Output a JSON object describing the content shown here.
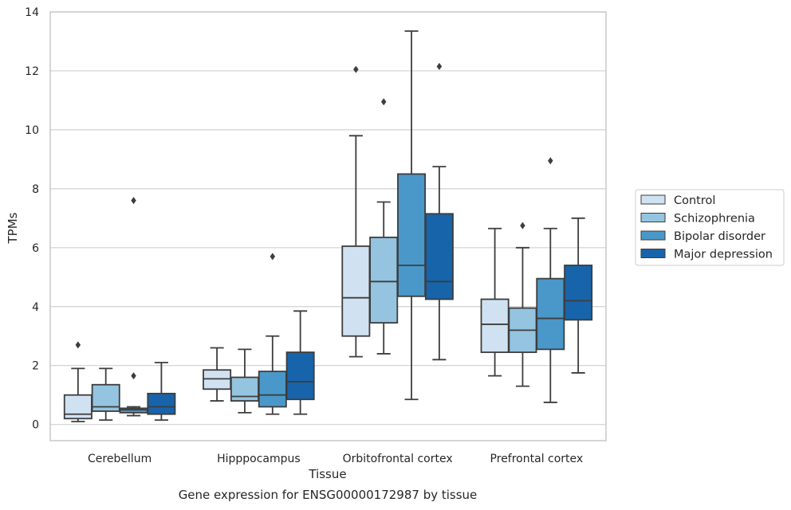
{
  "chart_data": {
    "type": "box",
    "title": "Gene expression for ENSG00000172987 by tissue",
    "xlabel": "Tissue",
    "ylabel": "TPMs",
    "ylim": [
      -0.55,
      14
    ],
    "yticks": [
      0,
      2,
      4,
      6,
      8,
      10,
      12,
      14
    ],
    "grid": "horizontal",
    "legend_position": "right",
    "categories": [
      "Cerebellum",
      "Hipppocampus",
      "Orbitofrontal cortex",
      "Prefrontal cortex"
    ],
    "series": [
      {
        "name": "Control",
        "color": "#d0e1f2",
        "boxes": [
          {
            "whisker_low": 0.1,
            "q1": 0.2,
            "median": 0.35,
            "q3": 1.0,
            "whisker_high": 1.9,
            "outliers": [
              2.7
            ]
          },
          {
            "whisker_low": 0.8,
            "q1": 1.2,
            "median": 1.55,
            "q3": 1.85,
            "whisker_high": 2.6,
            "outliers": []
          },
          {
            "whisker_low": 2.3,
            "q1": 3.0,
            "median": 4.3,
            "q3": 6.05,
            "whisker_high": 9.8,
            "outliers": [
              12.05
            ]
          },
          {
            "whisker_low": 1.65,
            "q1": 2.45,
            "median": 3.4,
            "q3": 4.25,
            "whisker_high": 6.65,
            "outliers": []
          }
        ]
      },
      {
        "name": "Schizophrenia",
        "color": "#94c4df",
        "boxes": [
          {
            "whisker_low": 0.15,
            "q1": 0.45,
            "median": 0.6,
            "q3": 1.35,
            "whisker_high": 1.9,
            "outliers": []
          },
          {
            "whisker_low": 0.4,
            "q1": 0.8,
            "median": 0.95,
            "q3": 1.6,
            "whisker_high": 2.55,
            "outliers": []
          },
          {
            "whisker_low": 2.4,
            "q1": 3.45,
            "median": 4.85,
            "q3": 6.35,
            "whisker_high": 7.55,
            "outliers": [
              10.95
            ]
          },
          {
            "whisker_low": 1.3,
            "q1": 2.45,
            "median": 3.2,
            "q3": 3.95,
            "whisker_high": 6.0,
            "outliers": [
              6.75
            ]
          }
        ]
      },
      {
        "name": "Bipolar disorder",
        "color": "#4a98c9",
        "boxes": [
          {
            "whisker_low": 0.3,
            "q1": 0.4,
            "median": 0.5,
            "q3": 0.55,
            "whisker_high": 0.6,
            "outliers": [
              1.65,
              7.6
            ]
          },
          {
            "whisker_low": 0.35,
            "q1": 0.6,
            "median": 1.0,
            "q3": 1.8,
            "whisker_high": 3.0,
            "outliers": [
              5.7
            ]
          },
          {
            "whisker_low": 0.85,
            "q1": 4.35,
            "median": 5.4,
            "q3": 8.5,
            "whisker_high": 13.35,
            "outliers": []
          },
          {
            "whisker_low": 0.75,
            "q1": 2.55,
            "median": 3.6,
            "q3": 4.95,
            "whisker_high": 6.65,
            "outliers": [
              8.95
            ]
          }
        ]
      },
      {
        "name": "Major depression",
        "color": "#1764ab",
        "boxes": [
          {
            "whisker_low": 0.15,
            "q1": 0.35,
            "median": 0.6,
            "q3": 1.05,
            "whisker_high": 2.1,
            "outliers": []
          },
          {
            "whisker_low": 0.35,
            "q1": 0.85,
            "median": 1.45,
            "q3": 2.45,
            "whisker_high": 3.85,
            "outliers": []
          },
          {
            "whisker_low": 2.2,
            "q1": 4.25,
            "median": 4.85,
            "q3": 7.15,
            "whisker_high": 8.75,
            "outliers": [
              12.15
            ]
          },
          {
            "whisker_low": 1.75,
            "q1": 3.55,
            "median": 4.2,
            "q3": 5.4,
            "whisker_high": 7.0,
            "outliers": []
          }
        ]
      }
    ]
  }
}
